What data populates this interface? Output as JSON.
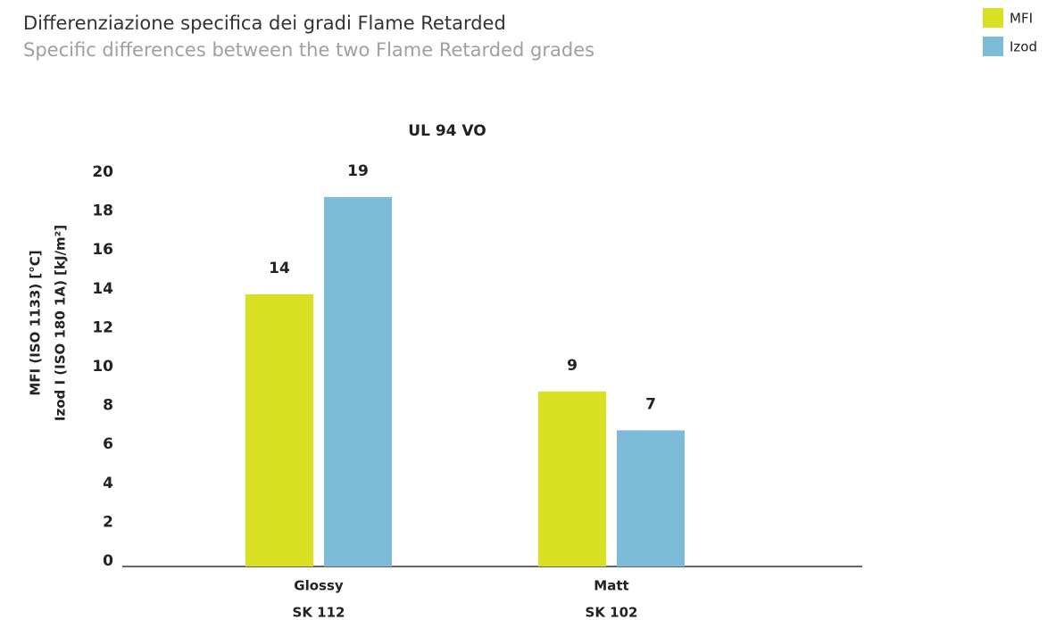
{
  "title": "Differenziazione specifica dei gradi Flame Retarded",
  "subtitle": "Specific differences between the two Flame Retarded grades",
  "chart_data": {
    "type": "bar",
    "title": "UL 94 VO",
    "y_label": [
      "MFI (ISO 1133) [°C]",
      "Izod I (ISO 180 1A) [kJ/m²]"
    ],
    "categories": [
      [
        "Glossy",
        "SK 112"
      ],
      [
        "Matt",
        "SK 102"
      ]
    ],
    "series": [
      {
        "name": "MFI",
        "color": "#d8e021",
        "values": [
          14,
          9
        ]
      },
      {
        "name": "Izod",
        "color": "#7dbcd9",
        "values": [
          19,
          7
        ]
      }
    ],
    "ylim": [
      0,
      20
    ],
    "yticks": [
      0,
      2,
      4,
      6,
      8,
      10,
      12,
      14,
      16,
      18,
      20
    ],
    "grid": false,
    "legend": "top-right"
  }
}
